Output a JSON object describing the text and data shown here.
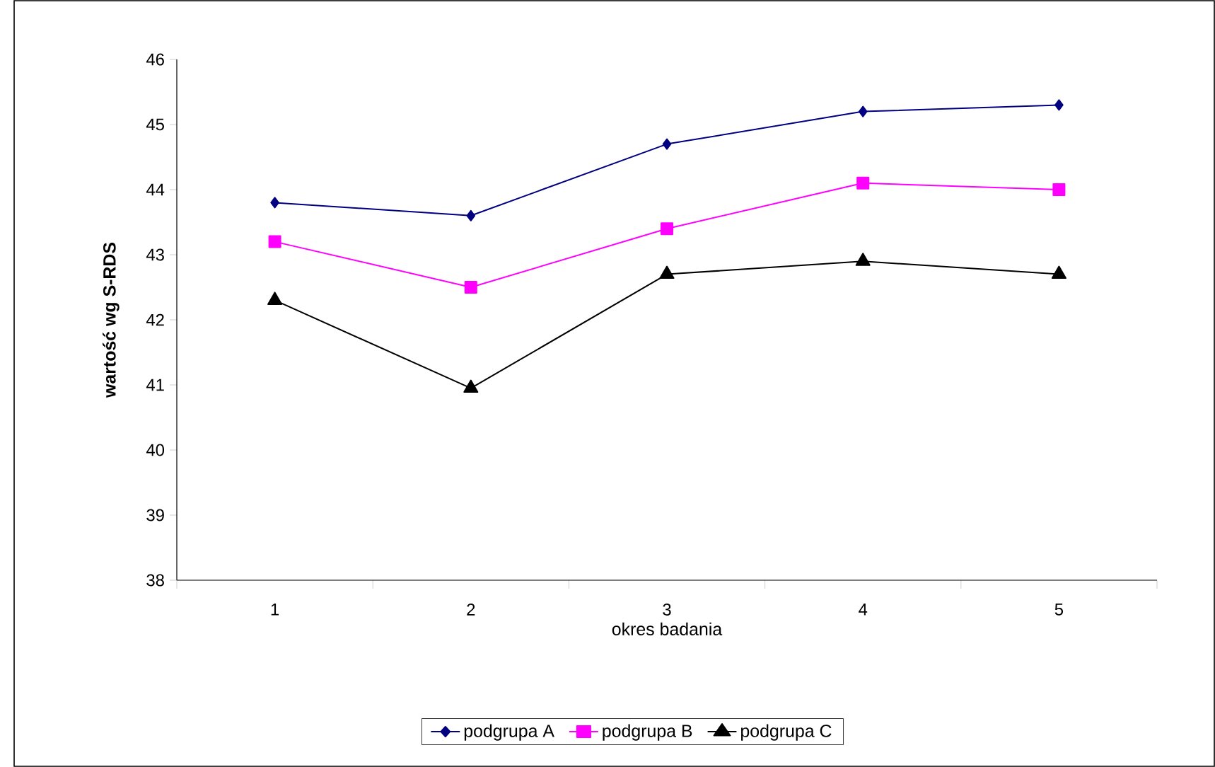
{
  "chart_data": {
    "type": "line",
    "xlabel": "okres badania",
    "ylabel": "wartość wg S-RDS",
    "categories": [
      "1",
      "2",
      "3",
      "4",
      "5"
    ],
    "series": [
      {
        "name": "podgrupa A",
        "color": "#000080",
        "marker": "diamond",
        "values": [
          43.8,
          43.6,
          44.7,
          45.2,
          45.3
        ]
      },
      {
        "name": "podgrupa B",
        "color": "#ff00ff",
        "marker": "square",
        "values": [
          43.2,
          42.5,
          43.4,
          44.1,
          44.0
        ]
      },
      {
        "name": "podgrupa C",
        "color": "#000000",
        "marker": "triangle",
        "values": [
          42.3,
          40.95,
          42.7,
          42.9,
          42.7
        ]
      }
    ],
    "ylim": [
      38,
      46
    ],
    "yticks": [
      38,
      39,
      40,
      41,
      42,
      43,
      44,
      45,
      46
    ],
    "grid": false,
    "legend": "bottom"
  }
}
